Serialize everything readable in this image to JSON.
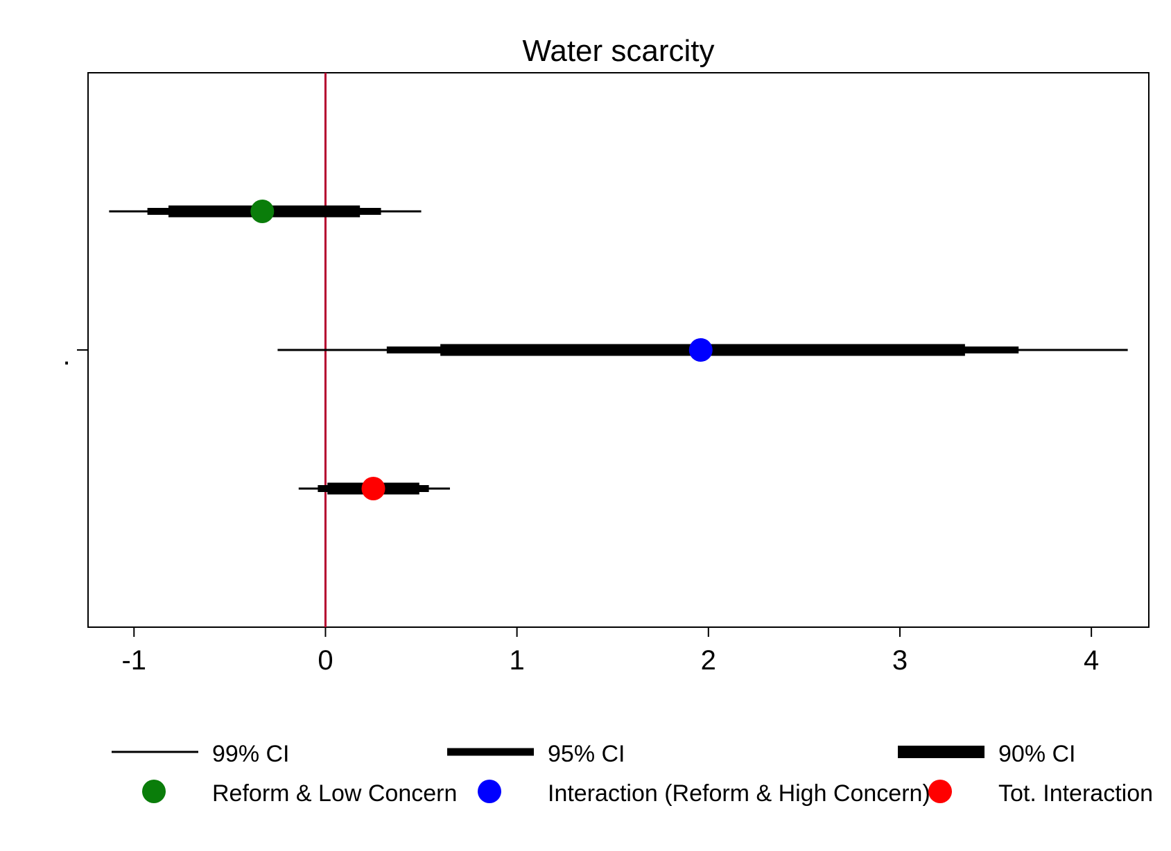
{
  "chart_data": {
    "type": "coefficient-plot",
    "title": "Water scarcity",
    "xlabel": "",
    "ylabel": "",
    "y_tick_label": ".",
    "xlim": [
      -1.24,
      4.3
    ],
    "x_ticks": [
      -1,
      0,
      1,
      2,
      3,
      4
    ],
    "x_tick_labels": [
      "-1",
      "0",
      "1",
      "2",
      "3",
      "4"
    ],
    "reference_line": {
      "x": 0,
      "color": "#b5002e"
    },
    "grid": false,
    "legend_position": "bottom",
    "ci_legend": [
      {
        "label": "99% CI",
        "level": "99"
      },
      {
        "label": "95% CI",
        "level": "95"
      },
      {
        "label": "90% CI",
        "level": "90"
      }
    ],
    "series": [
      {
        "name": "Reform & Low Concern",
        "color": "#0a7d0a",
        "estimate": -0.33,
        "ci99": [
          -1.13,
          0.5
        ],
        "ci95": [
          -0.93,
          0.29
        ],
        "ci90": [
          -0.82,
          0.18
        ]
      },
      {
        "name": "Interaction (Reform & High Concern)",
        "color": "#0000ff",
        "estimate": 1.96,
        "ci99": [
          -0.25,
          4.19
        ],
        "ci95": [
          0.32,
          3.62
        ],
        "ci90": [
          0.6,
          3.34
        ]
      },
      {
        "name": "Tot. Interaction",
        "color": "#ff0000",
        "estimate": 0.25,
        "ci99": [
          -0.14,
          0.65
        ],
        "ci95": [
          -0.04,
          0.54
        ],
        "ci90": [
          0.01,
          0.49
        ]
      }
    ]
  }
}
